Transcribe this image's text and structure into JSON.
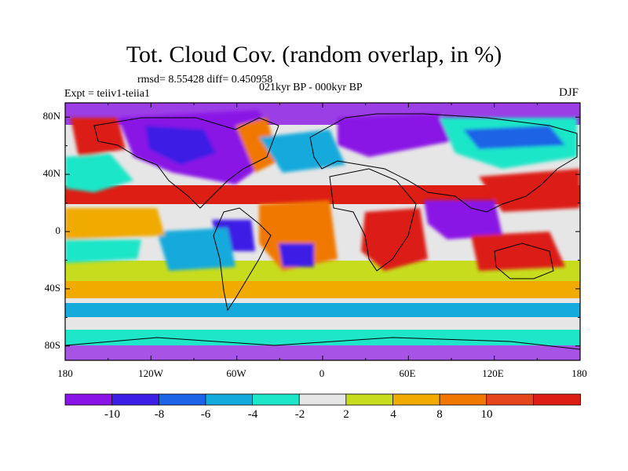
{
  "title": "Tot. Cloud Cov. (random overlap, in %)",
  "stats": "rmsd= 8.55428  diff= 0.450958",
  "period": "021kyr BP - 000kyr BP",
  "experiment": "Expt = teiiv1-teiia1",
  "season": "DJF",
  "map": {
    "lat_labels": [
      "80N",
      "40N",
      "0",
      "40S",
      "80S"
    ],
    "lon_labels": [
      "180",
      "120W",
      "60W",
      "0",
      "60E",
      "120E",
      "180"
    ],
    "lon_range": [
      -180,
      180
    ],
    "lat_range": [
      -90,
      90
    ]
  },
  "colorbar": {
    "tick_labels": [
      "-10",
      "-8",
      "-6",
      "-4",
      "-2",
      "2",
      "4",
      "8",
      "10"
    ],
    "colors": [
      "#8a14e6",
      "#3c1ee6",
      "#1e64e6",
      "#14aadc",
      "#1ee6c8",
      "#e6e6e6",
      "#c8dc1e",
      "#f0aa00",
      "#f07800",
      "#e6461e",
      "#dc1e14"
    ]
  }
}
